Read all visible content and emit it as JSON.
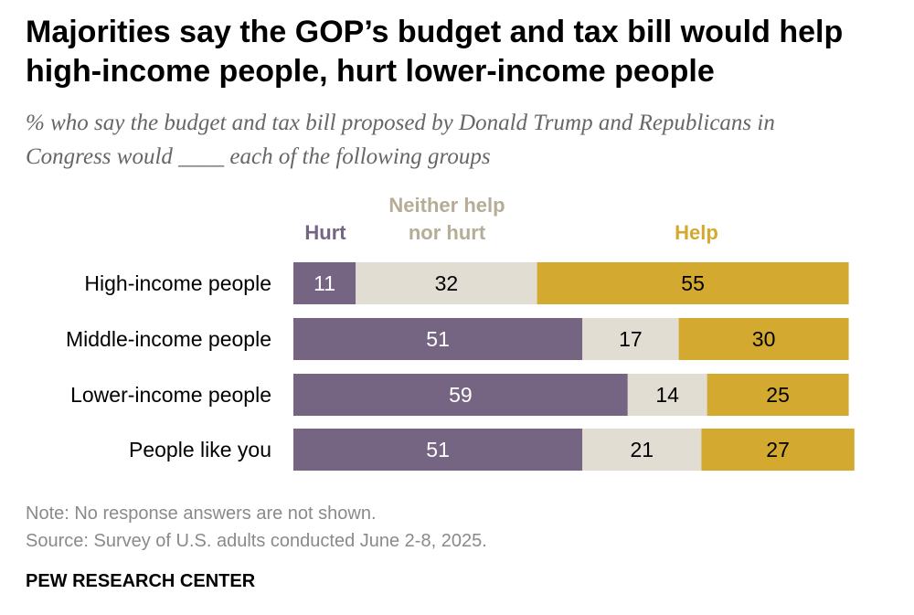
{
  "title": "Majorities say the GOP’s budget and tax bill would help high-income people, hurt lower-income people",
  "subtitle": "% who say the budget and tax bill proposed by Donald Trump and Republicans in Congress would ____ each of the following groups",
  "note": "Note: No response answers are not shown.",
  "source": "Source: Survey of U.S. adults conducted June 2-8, 2025.",
  "brand": "PEW RESEARCH CENTER",
  "colors": {
    "hurt": "#756582",
    "neither": "#e1ddd2",
    "help": "#d4a92f",
    "hurt_label_text": "#ffffff",
    "dark_label_text": "#000000",
    "label_gray": "#666666"
  },
  "chart_data": {
    "type": "bar",
    "orientation": "horizontal",
    "stacked": true,
    "title": "Majorities say the GOP’s budget and tax bill would help high-income people, hurt lower-income people",
    "categories": [
      "High-income people",
      "Middle-income people",
      "Lower-income people",
      "People like you"
    ],
    "series": [
      {
        "key": "hurt",
        "name": "Hurt",
        "legend_lines": [
          "Hurt"
        ],
        "values": [
          11,
          51,
          59,
          51
        ]
      },
      {
        "key": "neither",
        "name": "Neither help nor hurt",
        "legend_lines": [
          "Neither help",
          "nor hurt"
        ],
        "values": [
          32,
          17,
          14,
          21
        ]
      },
      {
        "key": "help",
        "name": "Help",
        "legend_lines": [
          "Help"
        ],
        "values": [
          55,
          30,
          25,
          27
        ]
      }
    ],
    "xlim": [
      0,
      100
    ],
    "xlabel": "",
    "ylabel": "",
    "grid": false,
    "legend_placement": "top"
  }
}
